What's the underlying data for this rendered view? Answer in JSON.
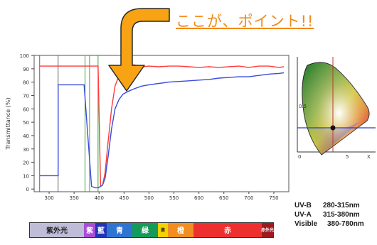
{
  "callout": {
    "text": "ここが、ポイント!!"
  },
  "chart_data": {
    "type": "line",
    "ylabel": "Transmittance (%)",
    "xlim": [
      270,
      780
    ],
    "ylim": [
      -2,
      100
    ],
    "x_ticks": [
      300,
      350,
      400,
      450,
      500,
      550,
      600,
      650,
      700,
      750
    ],
    "y_ticks": [
      0,
      10,
      20,
      30,
      40,
      50,
      60,
      70,
      80,
      90,
      100
    ],
    "series": [
      {
        "color": "#ff3b3b",
        "x": [
          281,
          318,
          318,
          370,
          385,
          393,
          398,
          403,
          407,
          412,
          418,
          425,
          432,
          440,
          448,
          458,
          470,
          485,
          500,
          520,
          540,
          560,
          580,
          600,
          620,
          640,
          660,
          680,
          700,
          720,
          740,
          760,
          770
        ],
        "y": [
          92,
          92,
          92,
          92,
          92,
          92,
          92,
          2,
          3,
          12,
          35,
          60,
          77,
          85,
          90,
          92,
          93,
          91.5,
          92,
          91.5,
          92,
          92,
          91.5,
          91,
          91.5,
          91,
          91.5,
          92,
          91,
          92,
          92,
          91,
          91.5
        ]
      },
      {
        "color": "#3b4bdc",
        "x": [
          281,
          318,
          318,
          370,
          385,
          393,
          398,
          403,
          407,
          412,
          418,
          425,
          432,
          440,
          448,
          458,
          470,
          485,
          500,
          520,
          540,
          560,
          580,
          600,
          620,
          640,
          660,
          680,
          700,
          720,
          740,
          760,
          770
        ],
        "y": [
          10,
          10,
          78,
          78,
          2,
          1,
          1,
          2,
          3,
          8,
          24,
          45,
          60,
          67,
          71,
          73,
          75,
          77,
          78,
          79,
          80,
          80.5,
          81,
          81.5,
          82,
          83,
          83.5,
          84,
          84,
          85,
          86,
          86.5,
          87
        ]
      }
    ],
    "spectrum_bands": [
      {
        "label": "紫外光",
        "color": "#bdbdd8"
      },
      {
        "label": "紫",
        "color": "#a64fd6"
      },
      {
        "label": "藍",
        "color": "#2233b8"
      },
      {
        "label": "青",
        "color": "#2f74d0"
      },
      {
        "label": "緑",
        "color": "#159a5a"
      },
      {
        "label": "黄",
        "color": "#f4d100"
      },
      {
        "label": "橙",
        "color": "#f08f20"
      },
      {
        "label": "赤",
        "color": "#ee2f2f"
      },
      {
        "label": "赤外光",
        "color": "#9d1b20"
      }
    ],
    "cie_diagram": {
      "x_ticks": [
        "0",
        "5",
        "X"
      ],
      "y_ticks": [
        "0.5"
      ]
    },
    "legend_text": [
      {
        "name": "UV-B",
        "range": "280-315nm"
      },
      {
        "name": "UV-A",
        "range": "315-380nm"
      },
      {
        "name": "Visible",
        "range": "380-780nm"
      }
    ]
  }
}
